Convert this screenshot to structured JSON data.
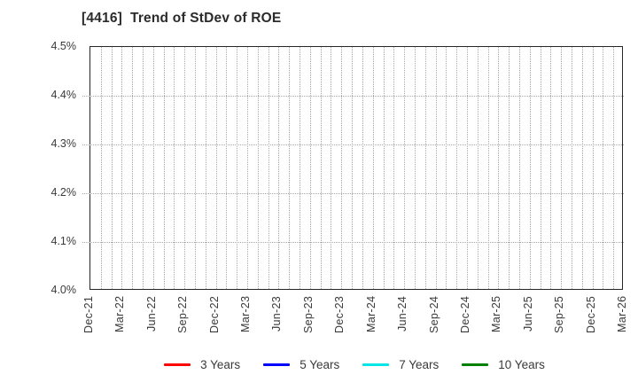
{
  "title": "[4416]  Trend of StDev of ROE",
  "chart_data": {
    "type": "line",
    "title": "[4416]  Trend of StDev of ROE",
    "xlabel": "",
    "ylabel": "",
    "x_tick_labels": [
      "Dec-21",
      "Mar-22",
      "Jun-22",
      "Sep-22",
      "Dec-22",
      "Mar-23",
      "Jun-23",
      "Sep-23",
      "Dec-23",
      "Mar-24",
      "Jun-24",
      "Sep-24",
      "Dec-24",
      "Mar-25",
      "Jun-25",
      "Sep-25",
      "Dec-25",
      "Mar-26"
    ],
    "months_total": 51,
    "months_per_labeled_tick": 3,
    "y_tick_labels": [
      "4.5%",
      "4.4%",
      "4.3%",
      "4.2%",
      "4.1%",
      "4.0%"
    ],
    "ylim": [
      4.0,
      4.5
    ],
    "grid": "dotted; vertical line every month, horizontal line every 0.1%",
    "legend_position": "bottom-center",
    "series": [
      {
        "name": "3 Years",
        "color": "#ff0000",
        "values": []
      },
      {
        "name": "5 Years",
        "color": "#0000ff",
        "values": []
      },
      {
        "name": "7 Years",
        "color": "#00e6e6",
        "values": []
      },
      {
        "name": "10 Years",
        "color": "#008000",
        "values": []
      }
    ],
    "plotted_points": "none (plot area is empty, only grid shown)",
    "colors": {
      "axis_border": "#262626",
      "gridline": "#a8a8a8",
      "text": "#3a3a3a"
    }
  }
}
